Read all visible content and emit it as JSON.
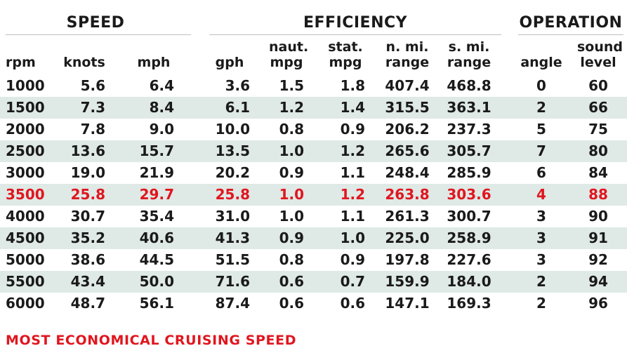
{
  "groups": {
    "speed": "SPEED",
    "efficiency": "EFFICIENCY",
    "operation": "OPERATION"
  },
  "columns": [
    {
      "key": "rpm",
      "label1": "",
      "label2": "rpm"
    },
    {
      "key": "knots",
      "label1": "",
      "label2": "knots"
    },
    {
      "key": "mph",
      "label1": "",
      "label2": "mph"
    },
    {
      "key": "gph",
      "label1": "",
      "label2": "gph"
    },
    {
      "key": "naut_mpg",
      "label1": "naut.",
      "label2": "mpg"
    },
    {
      "key": "stat_mpg",
      "label1": "stat.",
      "label2": "mpg"
    },
    {
      "key": "n_mi_range",
      "label1": "n. mi.",
      "label2": "range"
    },
    {
      "key": "s_mi_range",
      "label1": "s. mi.",
      "label2": "range"
    },
    {
      "key": "angle",
      "label1": "",
      "label2": "angle"
    },
    {
      "key": "sound_level",
      "label1": "sound",
      "label2": "level"
    }
  ],
  "chart_data": {
    "type": "table",
    "highlight_row": 5,
    "highlight_color": "#e0161f",
    "shade_color": "#dfe9e6",
    "rows": [
      [
        "1000",
        "5.6",
        "6.4",
        "3.6",
        "1.5",
        "1.8",
        "407.4",
        "468.8",
        "0",
        "60"
      ],
      [
        "1500",
        "7.3",
        "8.4",
        "6.1",
        "1.2",
        "1.4",
        "315.5",
        "363.1",
        "2",
        "66"
      ],
      [
        "2000",
        "7.8",
        "9.0",
        "10.0",
        "0.8",
        "0.9",
        "206.2",
        "237.3",
        "5",
        "75"
      ],
      [
        "2500",
        "13.6",
        "15.7",
        "13.5",
        "1.0",
        "1.2",
        "265.6",
        "305.7",
        "7",
        "80"
      ],
      [
        "3000",
        "19.0",
        "21.9",
        "20.2",
        "0.9",
        "1.1",
        "248.4",
        "285.9",
        "6",
        "84"
      ],
      [
        "3500",
        "25.8",
        "29.7",
        "25.8",
        "1.0",
        "1.2",
        "263.8",
        "303.6",
        "4",
        "88"
      ],
      [
        "4000",
        "30.7",
        "35.4",
        "31.0",
        "1.0",
        "1.1",
        "261.3",
        "300.7",
        "3",
        "90"
      ],
      [
        "4500",
        "35.2",
        "40.6",
        "41.3",
        "0.9",
        "1.0",
        "225.0",
        "258.9",
        "3",
        "91"
      ],
      [
        "5000",
        "38.6",
        "44.5",
        "51.5",
        "0.8",
        "0.9",
        "197.8",
        "227.6",
        "3",
        "92"
      ],
      [
        "5500",
        "43.4",
        "50.0",
        "71.6",
        "0.6",
        "0.7",
        "159.9",
        "184.0",
        "2",
        "94"
      ],
      [
        "6000",
        "48.7",
        "56.1",
        "87.4",
        "0.6",
        "0.6",
        "147.1",
        "169.3",
        "2",
        "96"
      ]
    ]
  },
  "footnote": "MOST ECONOMICAL CRUISING SPEED"
}
